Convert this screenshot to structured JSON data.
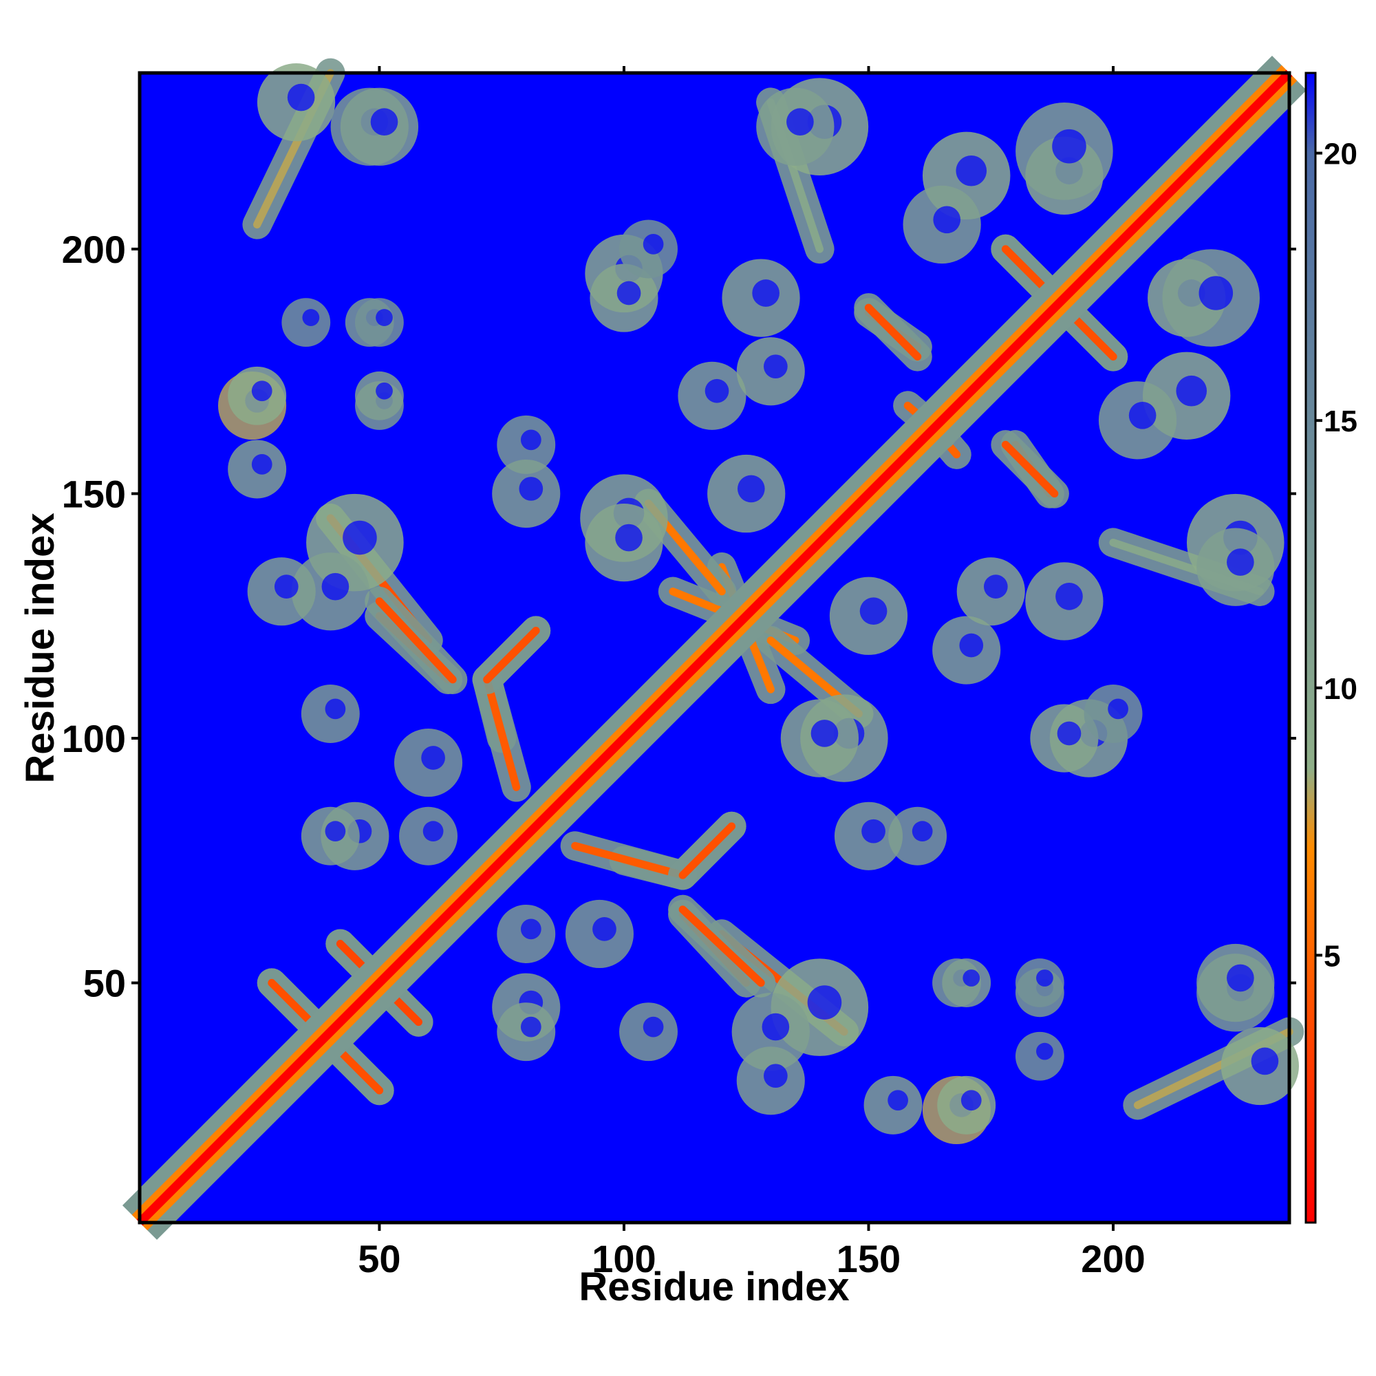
{
  "chart_data": {
    "type": "heatmap",
    "title": "",
    "xlabel": "Residue index",
    "ylabel": "Residue index",
    "xlim": [
      1,
      236
    ],
    "ylim": [
      1,
      236
    ],
    "x_ticks": [
      50,
      100,
      150,
      200
    ],
    "y_ticks": [
      50,
      100,
      150,
      200
    ],
    "colorbar": {
      "ticks": [
        5,
        10,
        15,
        20
      ],
      "range": [
        0,
        21.5
      ],
      "colors": [
        "#ff0000",
        "#ff8c00",
        "#8faf88",
        "#4a6aa8",
        "#0000ff"
      ],
      "stops": [
        0,
        7,
        8.5,
        20,
        21.5
      ]
    },
    "background_value": 21.5,
    "diagonal": {
      "from": 1,
      "to": 236
    },
    "features": [
      {
        "kind": "band",
        "start": [
          28,
          50
        ],
        "end": [
          42,
          36
        ],
        "value": 3.5
      },
      {
        "kind": "band",
        "start": [
          42,
          58
        ],
        "end": [
          58,
          42
        ],
        "value": 3.5
      },
      {
        "kind": "band",
        "start": [
          42,
          36
        ],
        "end": [
          50,
          28
        ],
        "value": 4.0
      },
      {
        "kind": "band",
        "start": [
          40,
          145
        ],
        "end": [
          60,
          120
        ],
        "value": 4.0
      },
      {
        "kind": "band",
        "start": [
          50,
          125
        ],
        "end": [
          64,
          112
        ],
        "value": 4.0
      },
      {
        "kind": "band",
        "start": [
          72,
          112
        ],
        "end": [
          82,
          122
        ],
        "value": 4.0
      },
      {
        "kind": "band",
        "start": [
          75,
          100
        ],
        "end": [
          72,
          112
        ],
        "value": 5.0
      },
      {
        "kind": "band",
        "start": [
          90,
          78
        ],
        "end": [
          112,
          72
        ],
        "value": 4.5
      },
      {
        "kind": "band",
        "start": [
          112,
          72
        ],
        "end": [
          122,
          82
        ],
        "value": 4.0
      },
      {
        "kind": "band",
        "start": [
          112,
          65
        ],
        "end": [
          128,
          50
        ],
        "value": 4.0
      },
      {
        "kind": "band",
        "start": [
          120,
          135
        ],
        "end": [
          130,
          110
        ],
        "value": 6.0
      },
      {
        "kind": "band",
        "start": [
          105,
          148
        ],
        "end": [
          120,
          130
        ],
        "value": 6.0
      },
      {
        "kind": "band",
        "start": [
          150,
          187
        ],
        "end": [
          160,
          180
        ],
        "value": 4.0
      },
      {
        "kind": "band",
        "start": [
          162,
          165
        ],
        "end": [
          168,
          158
        ],
        "value": 5.0
      },
      {
        "kind": "band",
        "start": [
          178,
          200
        ],
        "end": [
          188,
          190
        ],
        "value": 4.0
      },
      {
        "kind": "band",
        "start": [
          188,
          190
        ],
        "end": [
          200,
          178
        ],
        "value": 4.0
      },
      {
        "kind": "band",
        "start": [
          178,
          160
        ],
        "end": [
          188,
          150
        ],
        "value": 4.0
      },
      {
        "kind": "band",
        "start": [
          200,
          140
        ],
        "end": [
          230,
          130
        ],
        "value": 10.0
      },
      {
        "kind": "band",
        "start": [
          205,
          25
        ],
        "end": [
          236,
          40
        ],
        "value": 8.0
      },
      {
        "kind": "blob",
        "center": [
          33,
          230
        ],
        "radius": 8,
        "value": 9
      },
      {
        "kind": "blob",
        "center": [
          48,
          225
        ],
        "radius": 8,
        "value": 12
      },
      {
        "kind": "blob",
        "center": [
          24,
          168
        ],
        "radius": 7,
        "value": 8
      },
      {
        "kind": "blob",
        "center": [
          50,
          168
        ],
        "radius": 5,
        "value": 12
      },
      {
        "kind": "blob",
        "center": [
          100,
          195
        ],
        "radius": 8,
        "value": 10
      },
      {
        "kind": "blob",
        "center": [
          128,
          190
        ],
        "radius": 8,
        "value": 10
      },
      {
        "kind": "blob",
        "center": [
          140,
          225
        ],
        "radius": 10,
        "value": 9
      },
      {
        "kind": "blob",
        "center": [
          118,
          170
        ],
        "radius": 7,
        "value": 11
      },
      {
        "kind": "blob",
        "center": [
          170,
          215
        ],
        "radius": 9,
        "value": 9
      },
      {
        "kind": "blob",
        "center": [
          190,
          215
        ],
        "radius": 8,
        "value": 9
      },
      {
        "kind": "blob",
        "center": [
          220,
          190
        ],
        "radius": 10,
        "value": 11
      },
      {
        "kind": "blob",
        "center": [
          205,
          165
        ],
        "radius": 8,
        "value": 11
      },
      {
        "kind": "blob",
        "center": [
          175,
          130
        ],
        "radius": 7,
        "value": 10
      },
      {
        "kind": "blob",
        "center": [
          190,
          100
        ],
        "radius": 7,
        "value": 10
      },
      {
        "kind": "blob",
        "center": [
          225,
          135
        ],
        "radius": 8,
        "value": 11
      },
      {
        "kind": "blob",
        "center": [
          145,
          100
        ],
        "radius": 9,
        "value": 10
      },
      {
        "kind": "blob",
        "center": [
          160,
          80
        ],
        "radius": 6,
        "value": 12
      },
      {
        "kind": "blob",
        "center": [
          200,
          105
        ],
        "radius": 6,
        "value": 13
      },
      {
        "kind": "blob",
        "center": [
          140,
          45
        ],
        "radius": 10,
        "value": 9
      },
      {
        "kind": "blob",
        "center": [
          130,
          40
        ],
        "radius": 8,
        "value": 11
      },
      {
        "kind": "blob",
        "center": [
          170,
          25
        ],
        "radius": 6,
        "value": 9
      },
      {
        "kind": "blob",
        "center": [
          155,
          25
        ],
        "radius": 6,
        "value": 11
      },
      {
        "kind": "blob",
        "center": [
          170,
          50
        ],
        "radius": 5,
        "value": 11
      },
      {
        "kind": "blob",
        "center": [
          185,
          48
        ],
        "radius": 5,
        "value": 12
      },
      {
        "kind": "blob",
        "center": [
          225,
          50
        ],
        "radius": 8,
        "value": 11
      },
      {
        "kind": "blob",
        "center": [
          80,
          45
        ],
        "radius": 7,
        "value": 11
      },
      {
        "kind": "blob",
        "center": [
          40,
          80
        ],
        "radius": 6,
        "value": 11
      },
      {
        "kind": "blob",
        "center": [
          40,
          105
        ],
        "radius": 6,
        "value": 12
      },
      {
        "kind": "blob",
        "center": [
          80,
          150
        ],
        "radius": 7,
        "value": 11
      },
      {
        "kind": "blob",
        "center": [
          100,
          140
        ],
        "radius": 8,
        "value": 10
      },
      {
        "kind": "blob",
        "center": [
          95,
          60
        ],
        "radius": 7,
        "value": 12
      },
      {
        "kind": "blob",
        "center": [
          80,
          60
        ],
        "radius": 6,
        "value": 12
      },
      {
        "kind": "blob",
        "center": [
          30,
          130
        ],
        "radius": 7,
        "value": 11
      },
      {
        "kind": "blob",
        "center": [
          35,
          185
        ],
        "radius": 5,
        "value": 13
      },
      {
        "kind": "blob",
        "center": [
          50,
          185
        ],
        "radius": 5,
        "value": 13
      },
      {
        "kind": "blob",
        "center": [
          150,
          125
        ],
        "radius": 8,
        "value": 10
      }
    ]
  }
}
